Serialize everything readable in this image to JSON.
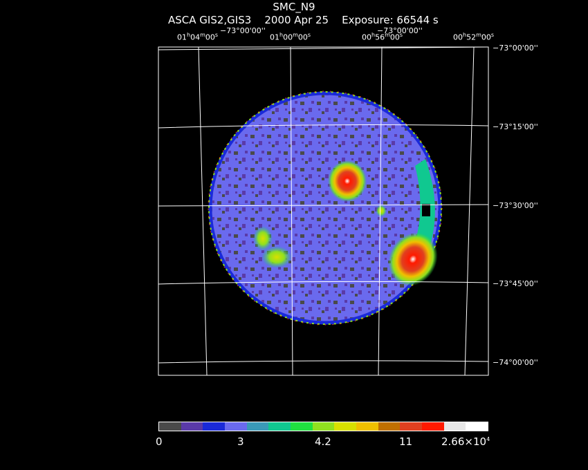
{
  "header": {
    "title": "SMC_N9",
    "subtitle": "ASCA GIS2,GIS3    2000 Apr 25    Exposure: 66544 s"
  },
  "axes": {
    "ra_labels": [
      {
        "h": "01",
        "m": "04",
        "s": "00"
      },
      {
        "h": "01",
        "m": "00",
        "s": "00"
      },
      {
        "h": "00",
        "m": "56",
        "s": "00"
      },
      {
        "h": "00",
        "m": "52",
        "s": "00"
      }
    ],
    "dec_top_labels": [
      "−73°00'00''",
      "−73°00'00''"
    ],
    "dec_labels": [
      "−73°00'00''",
      "−73°15'00''",
      "−73°30'00''",
      "−73°45'00''",
      "−74°00'00''"
    ]
  },
  "colorbar": {
    "colors": [
      "#4a4a4a",
      "#5a3aa8",
      "#1a2ad8",
      "#6a6aee",
      "#3a9ab8",
      "#10c890",
      "#20e040",
      "#90e020",
      "#d8e000",
      "#f0c000",
      "#c07000",
      "#e04020",
      "#ff1a00",
      "#e8e8e8",
      "#ffffff"
    ],
    "labels": [
      {
        "text": "0"
      },
      {
        "text": "3"
      },
      {
        "text": "4.2"
      },
      {
        "text": "11"
      },
      {
        "text": "2.66×10",
        "sup": "4"
      }
    ]
  },
  "image": {
    "background_color": "#6a6aee",
    "sources": [
      {
        "name": "central-source"
      },
      {
        "name": "southwest-bright-source"
      },
      {
        "name": "eastern-diffuse-source"
      },
      {
        "name": "small-source"
      }
    ]
  }
}
